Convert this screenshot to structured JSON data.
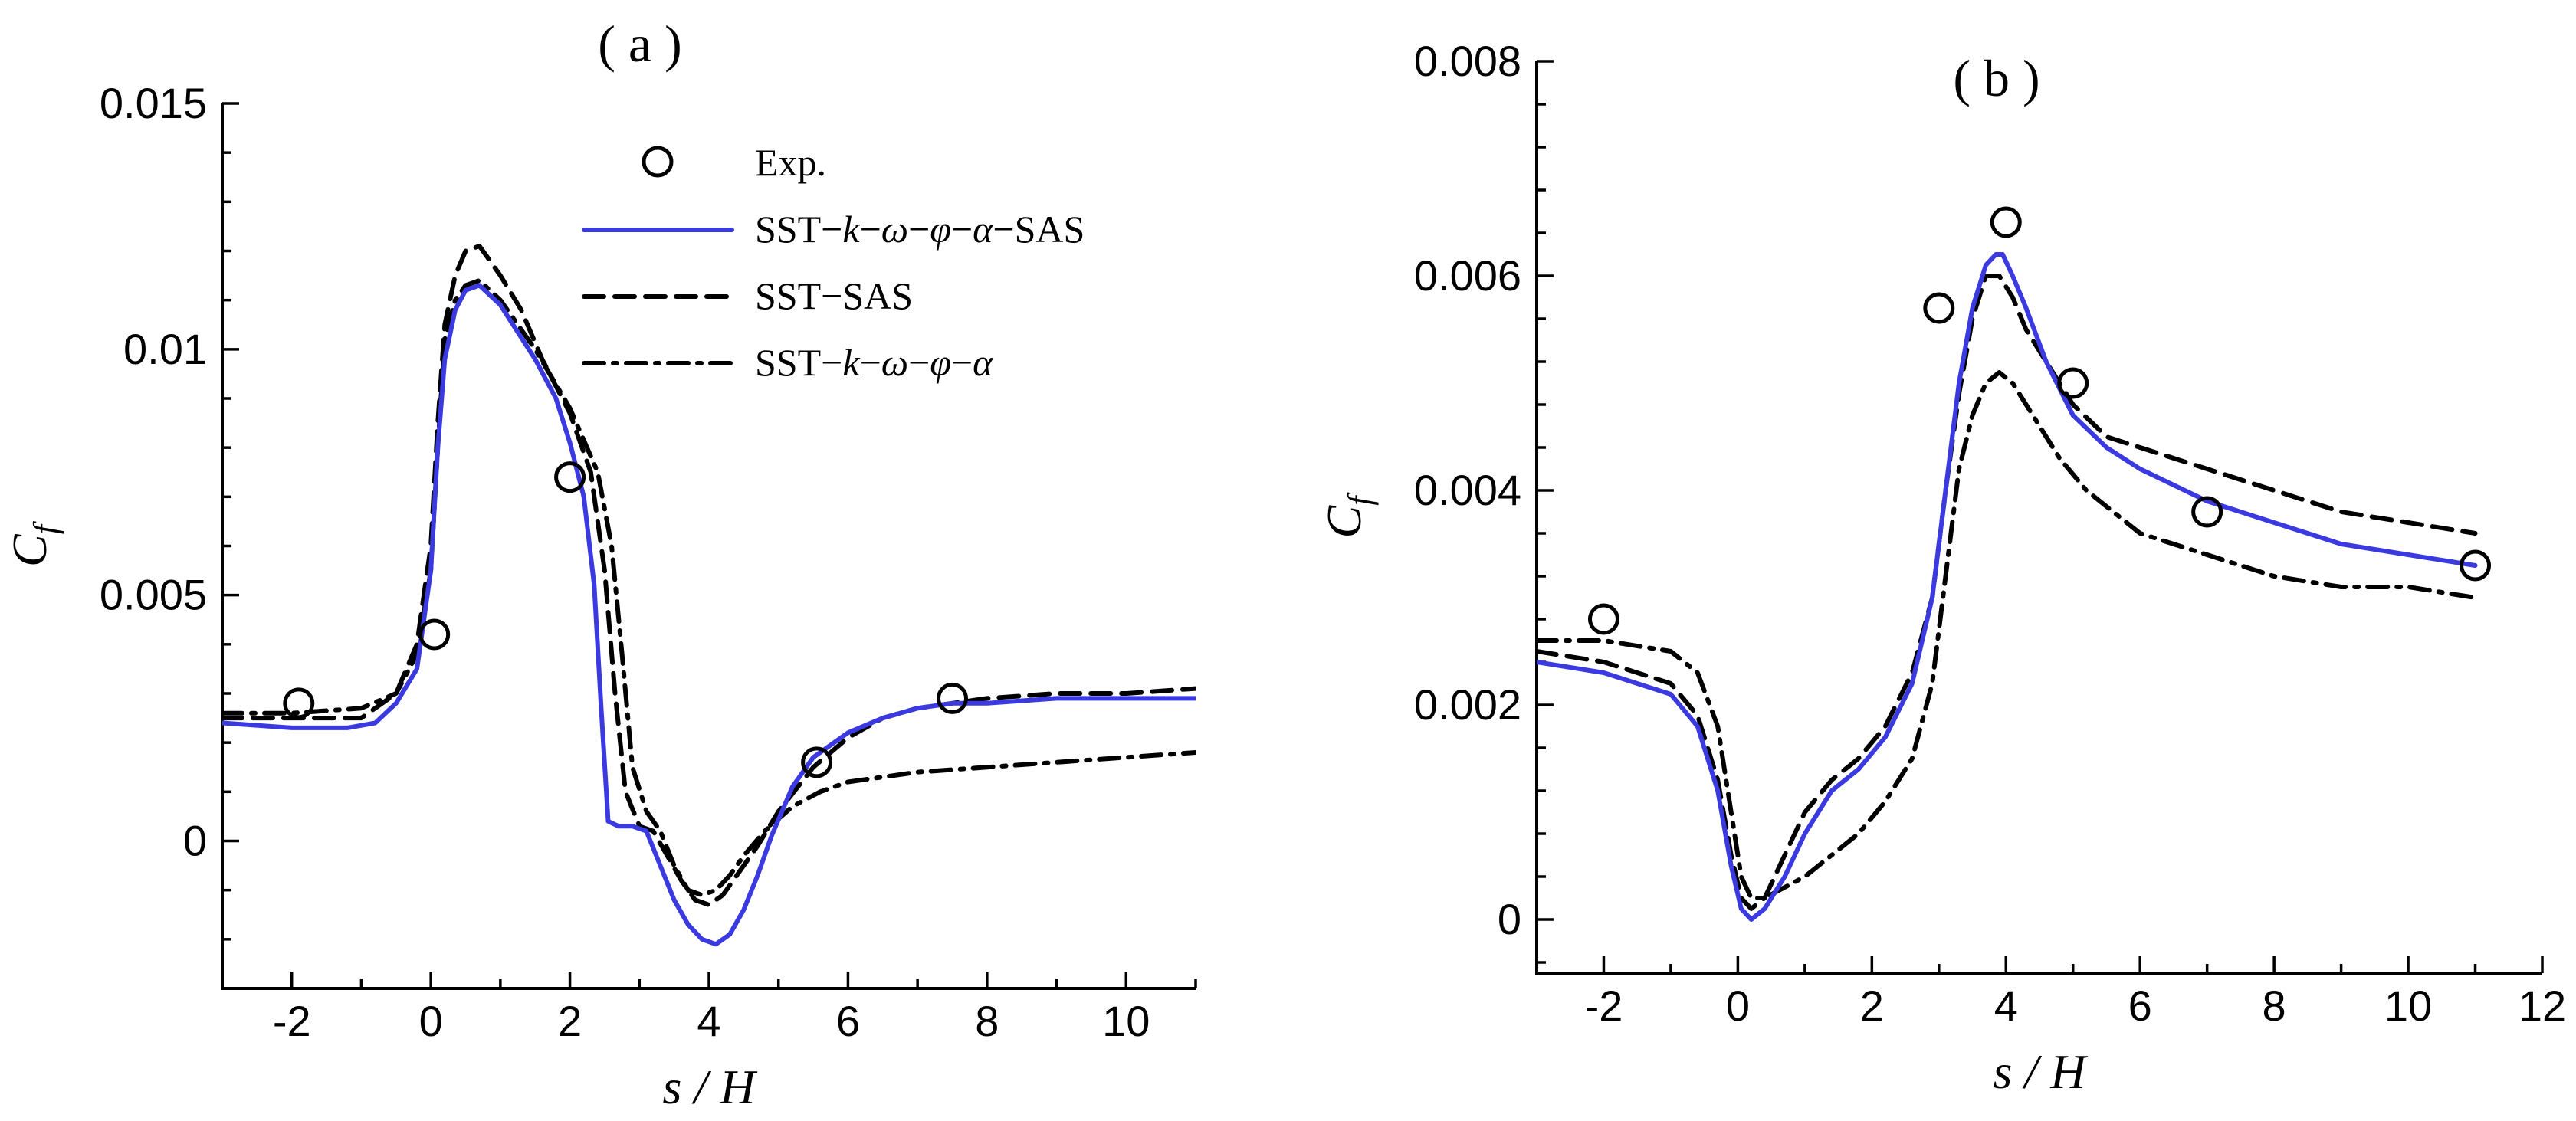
{
  "chart_data": [
    {
      "type": "line",
      "title": "( a )",
      "xlabel": "s / H",
      "ylabel": "C_f",
      "xlim": [
        -3,
        11
      ],
      "ylim": [
        -0.003,
        0.015
      ],
      "xticks": [
        -2,
        0,
        2,
        4,
        6,
        8,
        10
      ],
      "xticklabels": [
        "-2",
        "0",
        "2",
        "4",
        "6",
        "8",
        "10"
      ],
      "yticks": [
        0,
        0.005,
        0.01,
        0.015
      ],
      "yticklabels": [
        "0",
        "0.005",
        "0.01",
        "0.015"
      ],
      "legend": {
        "placement": "top-right",
        "entries": [
          {
            "label_parts": [
              "Exp."
            ],
            "style": "circle"
          },
          {
            "label_parts": [
              "SST−",
              "k",
              "−",
              "ω",
              "−",
              "φ",
              "−",
              "α",
              "−SAS"
            ],
            "style": "solid-blue"
          },
          {
            "label_parts": [
              "SST−SAS"
            ],
            "style": "dashed"
          },
          {
            "label_parts": [
              "SST−",
              "k",
              "−",
              "ω",
              "−",
              "φ",
              "−",
              "α"
            ],
            "style": "dashdot"
          }
        ]
      },
      "series": [
        {
          "name": "SST-k-ω-φ-α-SAS",
          "style": "solid",
          "color": "#3a3ae0",
          "x": [
            -3,
            -2,
            -1.2,
            -0.8,
            -0.5,
            -0.2,
            0,
            0.1,
            0.2,
            0.35,
            0.5,
            0.7,
            1.0,
            1.5,
            1.8,
            2.0,
            2.2,
            2.35,
            2.45,
            2.55,
            2.7,
            2.9,
            3.1,
            3.3,
            3.5,
            3.7,
            3.9,
            4.1,
            4.3,
            4.5,
            4.7,
            4.9,
            5.2,
            5.5,
            6.0,
            6.5,
            7.0,
            7.5,
            8,
            9,
            10,
            11
          ],
          "y": [
            0.0024,
            0.0023,
            0.0023,
            0.0024,
            0.0028,
            0.0035,
            0.0055,
            0.008,
            0.0098,
            0.0108,
            0.0112,
            0.0113,
            0.0109,
            0.0098,
            0.009,
            0.0081,
            0.007,
            0.0052,
            0.0027,
            0.0004,
            0.0003,
            0.0003,
            0.0002,
            -0.0005,
            -0.0012,
            -0.0017,
            -0.002,
            -0.0021,
            -0.0019,
            -0.0014,
            -0.0007,
            0.0001,
            0.0011,
            0.0017,
            0.0022,
            0.0025,
            0.0027,
            0.0028,
            0.0028,
            0.0029,
            0.0029,
            0.0029
          ]
        },
        {
          "name": "SST-SAS",
          "style": "dashed",
          "color": "#000000",
          "x": [
            -3,
            -2,
            -1,
            -0.5,
            -0.2,
            0,
            0.1,
            0.2,
            0.35,
            0.5,
            0.7,
            1.0,
            1.3,
            1.6,
            2.0,
            2.3,
            2.5,
            2.65,
            2.8,
            3.0,
            3.2,
            3.4,
            3.6,
            3.8,
            4.0,
            4.2,
            4.4,
            4.7,
            5.0,
            5.5,
            6.0,
            6.5,
            7.0,
            7.5,
            8,
            9,
            10,
            11
          ],
          "y": [
            0.0025,
            0.0025,
            0.0025,
            0.003,
            0.004,
            0.006,
            0.0085,
            0.0105,
            0.0115,
            0.012,
            0.0121,
            0.0115,
            0.0108,
            0.0098,
            0.0087,
            0.0075,
            0.0055,
            0.003,
            0.001,
            0.0003,
            0.0002,
            -0.0003,
            -0.0008,
            -0.0012,
            -0.0013,
            -0.0011,
            -0.0007,
            -0.0001,
            0.0006,
            0.0015,
            0.0021,
            0.0025,
            0.0027,
            0.0028,
            0.0029,
            0.003,
            0.003,
            0.0031
          ]
        },
        {
          "name": "SST-k-ω-φ-α",
          "style": "dashdot",
          "color": "#000000",
          "x": [
            -3,
            -2,
            -1,
            -0.5,
            -0.2,
            0,
            0.1,
            0.2,
            0.35,
            0.5,
            0.7,
            1.0,
            1.5,
            2.0,
            2.4,
            2.6,
            2.75,
            2.9,
            3.1,
            3.3,
            3.5,
            3.7,
            3.9,
            4.1,
            4.3,
            4.5,
            4.8,
            5.2,
            5.6,
            6.0,
            6.5,
            7.0,
            8,
            9,
            10,
            11
          ],
          "y": [
            0.0026,
            0.0026,
            0.0027,
            0.003,
            0.0038,
            0.0055,
            0.008,
            0.0102,
            0.011,
            0.0113,
            0.0114,
            0.011,
            0.01,
            0.0088,
            0.0075,
            0.006,
            0.0038,
            0.0015,
            0.0006,
            0.0002,
            -0.0005,
            -0.001,
            -0.0011,
            -0.001,
            -0.0007,
            -0.0003,
            0.0002,
            0.0007,
            0.001,
            0.0012,
            0.0013,
            0.0014,
            0.0015,
            0.0016,
            0.0017,
            0.0018
          ]
        }
      ],
      "points": {
        "name": "Exp.",
        "x": [
          -1.9,
          0.05,
          2.0,
          5.55,
          7.5
        ],
        "y": [
          0.0028,
          0.0042,
          0.0074,
          0.0016,
          0.0029
        ]
      }
    },
    {
      "type": "line",
      "title": "( b )",
      "xlabel": "s / H",
      "ylabel": "C_f",
      "xlim": [
        -3,
        12
      ],
      "ylim": [
        -0.0005,
        0.008
      ],
      "xticks": [
        -2,
        0,
        2,
        4,
        6,
        8,
        10,
        12
      ],
      "xticklabels": [
        "-2",
        "0",
        "2",
        "4",
        "6",
        "8",
        "10",
        "12"
      ],
      "yticks": [
        0,
        0.002,
        0.004,
        0.006,
        0.008
      ],
      "yticklabels": [
        "0",
        "0.002",
        "0.004",
        "0.006",
        "0.008"
      ],
      "series": [
        {
          "name": "SST-k-ω-φ-α-SAS",
          "style": "solid",
          "color": "#3a3ae0",
          "x": [
            -3,
            -2,
            -1,
            -0.6,
            -0.3,
            -0.1,
            0.05,
            0.2,
            0.4,
            0.7,
            1.0,
            1.4,
            1.8,
            2.2,
            2.6,
            2.9,
            3.1,
            3.3,
            3.5,
            3.7,
            3.85,
            3.95,
            4.1,
            4.3,
            4.6,
            5.0,
            5.5,
            6.0,
            7.0,
            8,
            9,
            10,
            11
          ],
          "y": [
            0.0024,
            0.0023,
            0.0021,
            0.0018,
            0.0012,
            0.0005,
            0.0001,
            0.0,
            0.0001,
            0.0004,
            0.0008,
            0.0012,
            0.0014,
            0.0017,
            0.0022,
            0.003,
            0.004,
            0.005,
            0.0057,
            0.0061,
            0.0062,
            0.0062,
            0.006,
            0.0057,
            0.0052,
            0.0047,
            0.0044,
            0.0042,
            0.0039,
            0.0037,
            0.0035,
            0.0034,
            0.0033
          ]
        },
        {
          "name": "SST-SAS",
          "style": "dashed",
          "color": "#000000",
          "x": [
            -3,
            -2,
            -1,
            -0.6,
            -0.3,
            -0.1,
            0.05,
            0.2,
            0.4,
            0.7,
            1.0,
            1.4,
            1.8,
            2.2,
            2.6,
            2.9,
            3.1,
            3.3,
            3.5,
            3.7,
            3.9,
            4.1,
            4.3,
            4.6,
            5.0,
            5.5,
            6.0,
            7.0,
            8,
            9,
            10,
            11
          ],
          "y": [
            0.0025,
            0.0024,
            0.0022,
            0.0019,
            0.0013,
            0.0006,
            0.0002,
            0.0001,
            0.0002,
            0.0006,
            0.001,
            0.0013,
            0.0015,
            0.0018,
            0.0023,
            0.003,
            0.004,
            0.0049,
            0.0056,
            0.006,
            0.006,
            0.0058,
            0.0055,
            0.0052,
            0.0048,
            0.0045,
            0.0044,
            0.0042,
            0.004,
            0.0038,
            0.0037,
            0.0036
          ]
        },
        {
          "name": "SST-k-ω-φ-α",
          "style": "dashdot",
          "color": "#000000",
          "x": [
            -3,
            -2,
            -1,
            -0.6,
            -0.3,
            -0.1,
            0.05,
            0.2,
            0.4,
            0.7,
            1.0,
            1.4,
            1.8,
            2.2,
            2.6,
            2.9,
            3.1,
            3.3,
            3.5,
            3.7,
            3.9,
            4.1,
            4.4,
            4.8,
            5.2,
            6.0,
            7.0,
            8,
            9,
            10,
            11
          ],
          "y": [
            0.0026,
            0.0026,
            0.0025,
            0.0023,
            0.0018,
            0.001,
            0.0004,
            0.0002,
            0.0002,
            0.0003,
            0.0004,
            0.0006,
            0.0008,
            0.0011,
            0.0015,
            0.0022,
            0.0032,
            0.0042,
            0.0047,
            0.005,
            0.0051,
            0.005,
            0.0047,
            0.0043,
            0.004,
            0.0036,
            0.0034,
            0.0032,
            0.0031,
            0.0031,
            0.003
          ]
        }
      ],
      "points": {
        "name": "Exp.",
        "x": [
          -2.0,
          3.0,
          4.0,
          5.0,
          7.0,
          11.0
        ],
        "y": [
          0.0028,
          0.0057,
          0.0065,
          0.005,
          0.0038,
          0.0033
        ]
      }
    }
  ]
}
